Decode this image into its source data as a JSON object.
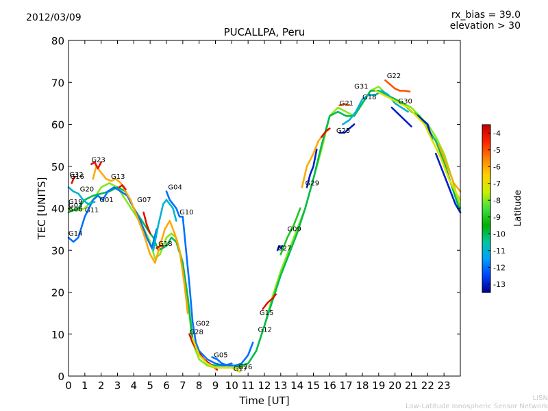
{
  "header": {
    "date": "2012/03/09",
    "rx_bias": "rx_bias = 39.0",
    "elevation": "elevation > 30"
  },
  "footer": {
    "line1": "LISN",
    "line2": "Low-Latitude Ionospheric Sensor Network"
  },
  "colorbar": {
    "label": "Latitude",
    "ticks": [
      "-4",
      "-5",
      "-6",
      "-7",
      "-8",
      "-9",
      "-10",
      "-11",
      "-12",
      "-13"
    ],
    "range": [
      -13.5,
      -3.5
    ],
    "colors": [
      "#00008b",
      "#0040ff",
      "#00a0ff",
      "#00c8a0",
      "#00b000",
      "#40e040",
      "#c8f000",
      "#ffd000",
      "#ff8000",
      "#ff2000",
      "#c00000"
    ]
  },
  "chart_data": {
    "type": "line",
    "title": "PUCALLPA, Peru",
    "xlabel": "Time [UT]",
    "ylabel": "TEC [UNITS]",
    "xlim": [
      0,
      24
    ],
    "ylim": [
      0,
      80
    ],
    "xticks": [
      0,
      1,
      2,
      3,
      4,
      5,
      6,
      7,
      8,
      9,
      10,
      11,
      12,
      13,
      14,
      15,
      16,
      17,
      18,
      19,
      20,
      21,
      22,
      23
    ],
    "yticks": [
      0,
      10,
      20,
      30,
      40,
      50,
      60,
      70,
      80
    ],
    "grid": false,
    "satellite_labels": [
      {
        "text": "G32",
        "x": 0.05,
        "y": 47.5
      },
      {
        "text": "G16",
        "x": 0.1,
        "y": 47.0
      },
      {
        "text": "G20",
        "x": 0.7,
        "y": 44.0
      },
      {
        "text": "G23",
        "x": 1.4,
        "y": 51.0
      },
      {
        "text": "G13",
        "x": 2.6,
        "y": 47.0
      },
      {
        "text": "G01",
        "x": 1.9,
        "y": 41.5
      },
      {
        "text": "G19",
        "x": 0.0,
        "y": 41.0
      },
      {
        "text": "G03",
        "x": 0.0,
        "y": 40.2
      },
      {
        "text": "G06",
        "x": 0.0,
        "y": 39.3
      },
      {
        "text": "G11",
        "x": 1.0,
        "y": 39.0
      },
      {
        "text": "G14",
        "x": 0.0,
        "y": 33.5
      },
      {
        "text": "G07",
        "x": 4.2,
        "y": 41.5
      },
      {
        "text": "G04",
        "x": 6.1,
        "y": 44.5
      },
      {
        "text": "G10",
        "x": 6.8,
        "y": 38.5
      },
      {
        "text": "G18",
        "x": 5.5,
        "y": 31.0
      },
      {
        "text": "G02",
        "x": 7.8,
        "y": 12.0
      },
      {
        "text": "G28",
        "x": 7.4,
        "y": 10.0
      },
      {
        "text": "G05",
        "x": 8.9,
        "y": 4.5
      },
      {
        "text": "G17",
        "x": 10.1,
        "y": 1.2
      },
      {
        "text": "G26",
        "x": 10.4,
        "y": 1.6
      },
      {
        "text": "G12",
        "x": 11.6,
        "y": 10.5
      },
      {
        "text": "G15",
        "x": 11.7,
        "y": 14.5
      },
      {
        "text": "G27",
        "x": 12.8,
        "y": 30.0
      },
      {
        "text": "G09",
        "x": 13.4,
        "y": 34.5
      },
      {
        "text": "G29",
        "x": 14.5,
        "y": 45.5
      },
      {
        "text": "G21",
        "x": 16.6,
        "y": 64.5
      },
      {
        "text": "G25",
        "x": 16.4,
        "y": 58.0
      },
      {
        "text": "G31",
        "x": 17.5,
        "y": 68.5
      },
      {
        "text": "G18",
        "x": 18.0,
        "y": 66.0
      },
      {
        "text": "G22",
        "x": 19.5,
        "y": 71.0
      },
      {
        "text": "G30",
        "x": 20.2,
        "y": 65.0
      }
    ],
    "series": [
      {
        "lat": -8,
        "x": [
          0,
          0.3,
          0.6,
          1,
          1.5,
          2,
          2.5,
          3,
          3.5,
          4,
          4.5,
          5,
          5.3,
          5.6,
          6,
          6.3,
          6.6,
          7,
          7.3,
          7.6,
          8,
          8.5,
          9,
          9.5,
          10,
          10.5,
          11,
          11.5,
          12,
          12.5,
          13,
          13.5,
          14,
          14.5,
          15,
          15.5,
          16,
          16.5,
          17,
          17.5,
          18,
          18.5,
          19,
          19.5,
          20,
          20.5,
          21,
          21.5,
          22,
          22.5,
          23,
          23.5,
          24
        ],
        "y": [
          40,
          39.5,
          39.5,
          40,
          42,
          45,
          46,
          45,
          42,
          39,
          36,
          32,
          28,
          29,
          33,
          34,
          33,
          27,
          18,
          8,
          4,
          2.5,
          2,
          2,
          2,
          2,
          3,
          6,
          12,
          19,
          25,
          30,
          35,
          40,
          47,
          54,
          62,
          64,
          63,
          62,
          65,
          68,
          69,
          67,
          66,
          65,
          64,
          62,
          60,
          57,
          53,
          47,
          40
        ]
      },
      {
        "lat": -10,
        "x": [
          0,
          0.3,
          0.6,
          1,
          1.5,
          2,
          2.5,
          3,
          3.5,
          4,
          4.5,
          5,
          5.2,
          5.5,
          6,
          6.3,
          6.6,
          7,
          7.3,
          7.6,
          8,
          8.5,
          9,
          9.5,
          10,
          10.5,
          11,
          11.5,
          12,
          12.5,
          13,
          13.5,
          14,
          14.5,
          15,
          15.5,
          16,
          16.5,
          17,
          17.5,
          18,
          18.5,
          19,
          19.5,
          20,
          20.5,
          21,
          21.5,
          22,
          22.5,
          23,
          23.5,
          24
        ],
        "y": [
          39,
          39.5,
          40,
          42,
          43,
          43.5,
          44,
          45,
          44,
          40,
          37,
          34,
          33,
          30,
          31,
          33,
          32,
          27,
          19,
          9,
          5,
          3,
          2.5,
          2.5,
          2.5,
          2.5,
          3,
          6,
          12,
          18,
          24,
          29,
          34,
          40,
          47,
          55,
          62,
          63,
          62,
          62,
          65,
          68,
          68,
          67,
          66,
          65,
          63,
          62,
          59,
          56,
          51,
          45,
          39
        ]
      },
      {
        "lat": -12,
        "x": [
          0,
          0.3,
          0.6,
          1,
          1.5,
          1.8,
          2.1,
          2.4,
          2.8,
          3.2,
          3.6,
          4,
          4.4,
          4.8,
          5.1,
          5.4
        ],
        "y": [
          33,
          32,
          33,
          38,
          42,
          43,
          42,
          44,
          45,
          44,
          43,
          40,
          37,
          33,
          30.5,
          35
        ]
      },
      {
        "lat": -11,
        "x": [
          5.2,
          5.5,
          5.8,
          6,
          6.2,
          6.4,
          6.6
        ],
        "y": [
          30,
          36,
          41,
          42,
          41,
          40,
          37
        ]
      },
      {
        "lat": -12,
        "x": [
          6.0,
          6.2,
          6.4,
          6.6,
          6.8,
          7,
          7.2,
          7.4,
          7.6,
          7.8,
          8,
          8.5,
          9,
          9.5,
          10
        ],
        "y": [
          44,
          42,
          41,
          40,
          38,
          38,
          30,
          22,
          13,
          8,
          6,
          4,
          3,
          2.5,
          3
        ]
      },
      {
        "lat": -6,
        "x": [
          1.5,
          1.7,
          1.9,
          2.1,
          2.3,
          2.6,
          2.9,
          3.2,
          3.5,
          3.8,
          4.2,
          4.6,
          5,
          5.3,
          5.6,
          5.9,
          6.2,
          6.5,
          6.8,
          7.1,
          7.3
        ],
        "y": [
          47,
          50,
          49,
          48,
          47,
          46.5,
          47,
          46,
          44,
          42,
          38,
          34,
          29,
          27,
          31,
          35,
          37,
          34,
          30,
          22,
          15
        ]
      },
      {
        "lat": -4,
        "x": [
          1.4,
          1.6,
          1.8,
          2.0
        ],
        "y": [
          50.5,
          51,
          49.5,
          51
        ]
      },
      {
        "lat": -4,
        "x": [
          0.2,
          0.3,
          0.4
        ],
        "y": [
          46,
          47,
          47.5
        ]
      },
      {
        "lat": -4,
        "x": [
          3.1,
          3.3,
          3.5
        ],
        "y": [
          45,
          45.5,
          44.5
        ]
      },
      {
        "lat": -4,
        "x": [
          4.6,
          4.8,
          5.0
        ],
        "y": [
          39,
          36,
          34
        ]
      },
      {
        "lat": -4,
        "x": [
          5.4,
          5.6,
          5.8
        ],
        "y": [
          30.5,
          31,
          31
        ]
      },
      {
        "lat": -4,
        "x": [
          7.4,
          7.6,
          7.9,
          8.3,
          8.8,
          9.1
        ],
        "y": [
          10,
          8,
          6,
          4,
          2.5,
          1.5
        ]
      },
      {
        "lat": -7,
        "x": [
          7.6,
          8,
          8.5,
          9,
          9.5,
          10,
          10.5
        ],
        "y": [
          9,
          5,
          3,
          2,
          2,
          2,
          1
        ]
      },
      {
        "lat": -12,
        "x": [
          8.8,
          9.1,
          9.4,
          9.8,
          10.2,
          10.6,
          11,
          11.3
        ],
        "y": [
          4.5,
          4,
          3,
          2.5,
          2.5,
          3,
          5,
          8
        ]
      },
      {
        "lat": -4,
        "x": [
          11.9,
          12.2,
          12.5,
          12.7
        ],
        "y": [
          16,
          17.5,
          18.5,
          19.5
        ]
      },
      {
        "lat": -13,
        "x": [
          12.8,
          12.9,
          13.0,
          13.1
        ],
        "y": [
          30,
          31,
          30.5,
          31
        ]
      },
      {
        "lat": -9,
        "x": [
          13,
          13.4,
          13.8,
          14.2
        ],
        "y": [
          29,
          33,
          36,
          40
        ]
      },
      {
        "lat": -6,
        "x": [
          14.3,
          14.6,
          15,
          15.3,
          15.7,
          16
        ],
        "y": [
          45,
          50,
          53,
          56,
          58,
          59
        ]
      },
      {
        "lat": -4,
        "x": [
          15.5,
          15.8,
          16.0
        ],
        "y": [
          57,
          58.5,
          59
        ]
      },
      {
        "lat": -13,
        "x": [
          14.6,
          14.8,
          15.0,
          15.2
        ],
        "y": [
          45,
          48,
          50,
          54
        ]
      },
      {
        "lat": -13,
        "x": [
          16.6,
          16.9,
          17.2,
          17.5
        ],
        "y": [
          58,
          58,
          59,
          60
        ]
      },
      {
        "lat": -11,
        "x": [
          16.8,
          17.2,
          17.6,
          18,
          18.4,
          18.8,
          19.2,
          19.6,
          20,
          20.4,
          20.8
        ],
        "y": [
          60,
          61,
          63,
          66,
          67,
          67,
          68,
          67,
          65,
          64,
          63
        ]
      },
      {
        "lat": -5,
        "x": [
          16.6,
          16.9,
          17.2
        ],
        "y": [
          64.5,
          64.8,
          64.6
        ]
      },
      {
        "lat": -5,
        "x": [
          19.4,
          19.7,
          20,
          20.3,
          20.6,
          20.9
        ],
        "y": [
          70.5,
          69.5,
          68.5,
          68,
          68,
          67.8
        ]
      },
      {
        "lat": -13,
        "x": [
          19.8,
          20.2,
          20.6,
          21
        ],
        "y": [
          64,
          62.5,
          61,
          59.5
        ]
      },
      {
        "lat": -13,
        "x": [
          21.4,
          21.7,
          22,
          22.3
        ],
        "y": [
          62,
          61,
          60,
          56
        ]
      },
      {
        "lat": -7,
        "x": [
          18.8,
          19.3,
          19.8,
          20.3,
          20.8,
          21.3,
          21.8,
          22.3,
          22.8,
          23.3,
          23.7,
          24
        ],
        "y": [
          68,
          67,
          66,
          65,
          64,
          62,
          60,
          56,
          52,
          47,
          44,
          42
        ]
      },
      {
        "lat": -6,
        "x": [
          22.7,
          23,
          23.3,
          23.6,
          24
        ],
        "y": [
          55,
          52,
          49,
          46,
          44
        ]
      },
      {
        "lat": -13,
        "x": [
          22.5,
          22.8,
          23.1,
          23.4,
          23.7,
          24
        ],
        "y": [
          53,
          50,
          47,
          44,
          41,
          39
        ]
      },
      {
        "lat": -11,
        "x": [
          0,
          0.3,
          0.6,
          0.9,
          1.2,
          1.6
        ],
        "y": [
          45,
          44,
          43.5,
          42,
          41,
          41.5
        ]
      }
    ]
  }
}
